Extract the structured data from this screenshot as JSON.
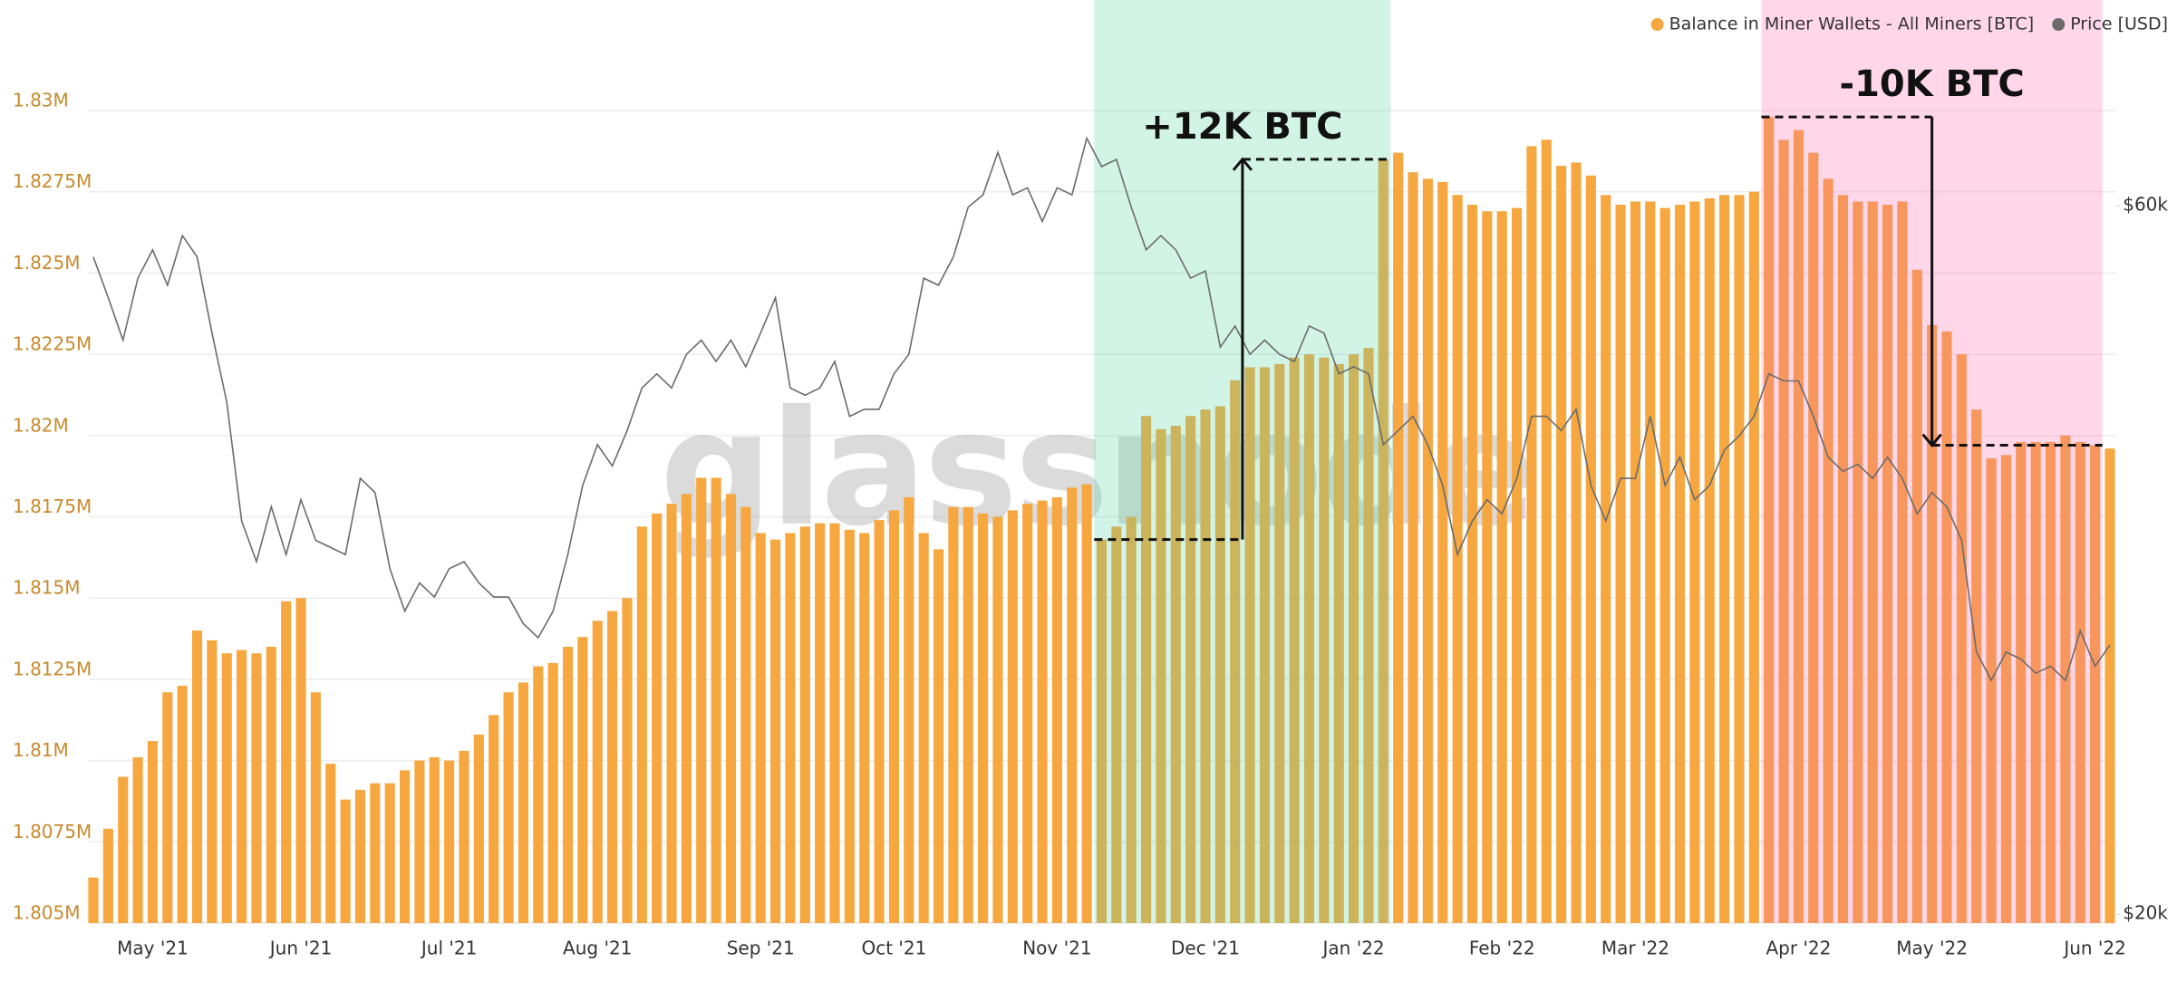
{
  "chart_data": {
    "type": "bar",
    "watermark": "glassnode",
    "categories": [
      null,
      null,
      null,
      null,
      "May '21",
      null,
      null,
      null,
      null,
      null,
      null,
      null,
      null,
      null,
      "Jun '21",
      null,
      null,
      null,
      null,
      null,
      null,
      null,
      null,
      null,
      "Jul '21",
      null,
      null,
      null,
      null,
      null,
      null,
      null,
      null,
      null,
      "Aug '21",
      null,
      null,
      null,
      null,
      null,
      null,
      null,
      null,
      null,
      null,
      "Sep '21",
      null,
      null,
      null,
      null,
      null,
      null,
      null,
      null,
      "Oct '21",
      null,
      null,
      null,
      null,
      null,
      null,
      null,
      null,
      null,
      null,
      "Nov '21",
      null,
      null,
      null,
      null,
      null,
      null,
      null,
      null,
      null,
      "Dec '21",
      null,
      null,
      null,
      null,
      null,
      null,
      null,
      null,
      null,
      "Jan '22",
      null,
      null,
      null,
      null,
      null,
      null,
      null,
      null,
      null,
      "Feb '22",
      null,
      null,
      null,
      null,
      null,
      null,
      null,
      null,
      "Mar '22",
      null,
      null,
      null,
      null,
      null,
      null,
      null,
      null,
      null,
      null,
      "Apr '22",
      null,
      null,
      null,
      null,
      null,
      null,
      null,
      null,
      "May '22",
      null,
      null,
      null,
      null,
      null,
      null,
      null,
      null,
      null,
      null,
      "Jun '22",
      null
    ],
    "series": [
      {
        "name": "Balance in Miner Wallets - All Miners [BTC]",
        "type": "bar",
        "color": "#f6a73f",
        "values": [
          1806400,
          1807900,
          1809500,
          1810100,
          1810600,
          1812100,
          1812300,
          1814000,
          1813700,
          1813300,
          1813400,
          1813300,
          1813500,
          1814900,
          1815000,
          1812100,
          1809900,
          1808800,
          1809100,
          1809300,
          1809300,
          1809700,
          1810000,
          1810100,
          1810000,
          1810300,
          1810800,
          1811400,
          1812100,
          1812400,
          1812900,
          1813000,
          1813500,
          1813800,
          1814300,
          1814600,
          1815000,
          1817200,
          1817600,
          1817900,
          1818200,
          1818700,
          1818700,
          1818200,
          1817800,
          1817000,
          1816800,
          1817000,
          1817200,
          1817300,
          1817300,
          1817100,
          1817000,
          1817400,
          1817700,
          1818100,
          1817000,
          1816500,
          1817800,
          1817800,
          1817600,
          1817500,
          1817700,
          1817900,
          1818000,
          1818100,
          1818400,
          1818500,
          1816800,
          1817200,
          1817500,
          1820600,
          1820200,
          1820300,
          1820600,
          1820800,
          1820900,
          1821700,
          1822100,
          1822100,
          1822200,
          1822400,
          1822500,
          1822400,
          1822200,
          1822500,
          1822700,
          1828500,
          1828700,
          1828100,
          1827900,
          1827800,
          1827400,
          1827100,
          1826900,
          1826900,
          1827000,
          1828900,
          1829100,
          1828300,
          1828400,
          1828000,
          1827400,
          1827100,
          1827200,
          1827200,
          1827000,
          1827100,
          1827200,
          1827300,
          1827400,
          1827400,
          1827500,
          1829800,
          1829100,
          1829400,
          1828700,
          1827900,
          1827400,
          1827200,
          1827200,
          1827100,
          1827200,
          1825100,
          1823400,
          1823200,
          1822500,
          1820800,
          1819300,
          1819400,
          1819800,
          1819800,
          1819800,
          1820000,
          1819800,
          1819700,
          1819600
        ]
      },
      {
        "name": "Price [USD]",
        "type": "line",
        "axis": "y2",
        "color": "#6b6b6b",
        "values": [
          57100,
          54800,
          52400,
          55900,
          57500,
          55500,
          58300,
          57100,
          52800,
          48900,
          42200,
          39900,
          43000,
          40300,
          43400,
          41100,
          40700,
          40300,
          44600,
          43800,
          39500,
          37100,
          38700,
          37900,
          39500,
          39900,
          38700,
          37900,
          37900,
          36400,
          35600,
          37100,
          40300,
          44200,
          46500,
          45300,
          47300,
          49700,
          50500,
          49700,
          51600,
          52400,
          51200,
          52400,
          50900,
          52800,
          54800,
          49700,
          49300,
          49700,
          51200,
          48100,
          48500,
          48500,
          50500,
          51600,
          55900,
          55500,
          57100,
          59900,
          60600,
          63000,
          60600,
          61000,
          59100,
          61000,
          60600,
          63800,
          62200,
          62600,
          59900,
          57500,
          58300,
          57500,
          55900,
          56300,
          52000,
          53200,
          51600,
          52400,
          51600,
          51200,
          53200,
          52800,
          50500,
          50900,
          50500,
          46500,
          47300,
          48100,
          46500,
          44200,
          40300,
          42200,
          43400,
          42600,
          44600,
          48100,
          48100,
          47300,
          48500,
          44200,
          42200,
          44600,
          44600,
          48100,
          44200,
          45800,
          43400,
          44200,
          46200,
          47000,
          48100,
          50500,
          50100,
          50100,
          48100,
          45800,
          45000,
          45400,
          44600,
          45800,
          44600,
          42600,
          43800,
          43000,
          41100,
          34800,
          33200,
          34800,
          34400,
          33600,
          34000,
          33200,
          36000,
          34000,
          35200
        ]
      }
    ],
    "annotations": [
      {
        "text": "+12K BTC",
        "start": 68,
        "end": 87,
        "color": "#5fd6a8"
      },
      {
        "text": "-10K BTC",
        "start": 113,
        "end": 135,
        "color": "#ff6fae"
      }
    ],
    "ylim": [
      1805000,
      1833400
    ],
    "yticks": [
      {
        "value": 1805000,
        "label": "1.805M"
      },
      {
        "value": 1807500,
        "label": "1.8075M"
      },
      {
        "value": 1810000,
        "label": "1.81M"
      },
      {
        "value": 1812500,
        "label": "1.8125M"
      },
      {
        "value": 1815000,
        "label": "1.815M"
      },
      {
        "value": 1817500,
        "label": "1.8175M"
      },
      {
        "value": 1820000,
        "label": "1.82M"
      },
      {
        "value": 1822500,
        "label": "1.8225M"
      },
      {
        "value": 1825000,
        "label": "1.825M"
      },
      {
        "value": 1827500,
        "label": "1.8275M"
      },
      {
        "value": 1830000,
        "label": "1.83M"
      }
    ],
    "y2lim": [
      19500,
      71600
    ],
    "y2ticks": [
      {
        "value": 20000,
        "label": "$20k"
      },
      {
        "value": 60000,
        "label": "$60k"
      }
    ],
    "grid": true,
    "legend": "top-right"
  }
}
